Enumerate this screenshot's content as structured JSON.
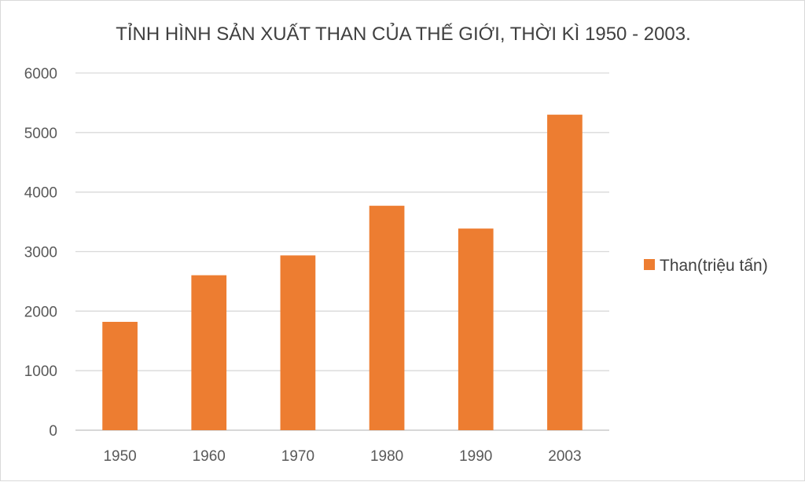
{
  "chart_data": {
    "type": "bar",
    "title": "TỈNH HÌNH SẢN XUẤT THAN CỦA THẾ GIỚI, THỜI KÌ 1950 - 2003.",
    "categories": [
      "1950",
      "1960",
      "1970",
      "1980",
      "1990",
      "2003"
    ],
    "series": [
      {
        "name": "Than(triệu tấn)",
        "values": [
          1820,
          2603,
          2936,
          3770,
          3387,
          5300
        ]
      }
    ],
    "ylim": [
      0,
      6000
    ],
    "yticks": [
      "0",
      "1000",
      "2000",
      "3000",
      "4000",
      "5000",
      "6000"
    ],
    "grid": true,
    "legend": "right",
    "colors": {
      "bar": "#ed7d31",
      "grid": "#d9d9d9",
      "text": "#595959"
    }
  }
}
